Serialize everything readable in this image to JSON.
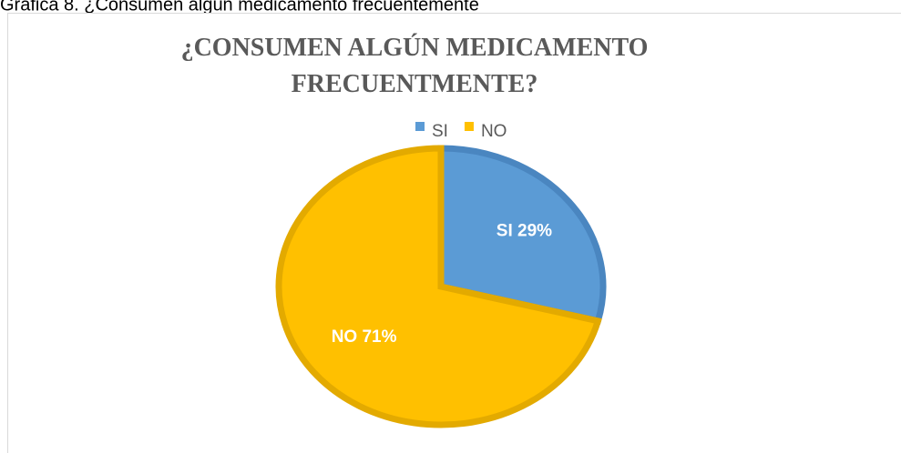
{
  "caption": "Gráfica 8. ¿Consumen algún medicamento frecuentemente",
  "chart_data": {
    "type": "pie",
    "title": "¿CONSUMEN ALGÚN MEDICAMENTO FRECUENTMENTE?",
    "categories": [
      "SI",
      "NO"
    ],
    "values": [
      29,
      71
    ],
    "value_labels": [
      "SI 29%",
      "NO 71%"
    ],
    "colors": [
      "#5b9bd5",
      "#ffc000"
    ],
    "legend": "top"
  }
}
